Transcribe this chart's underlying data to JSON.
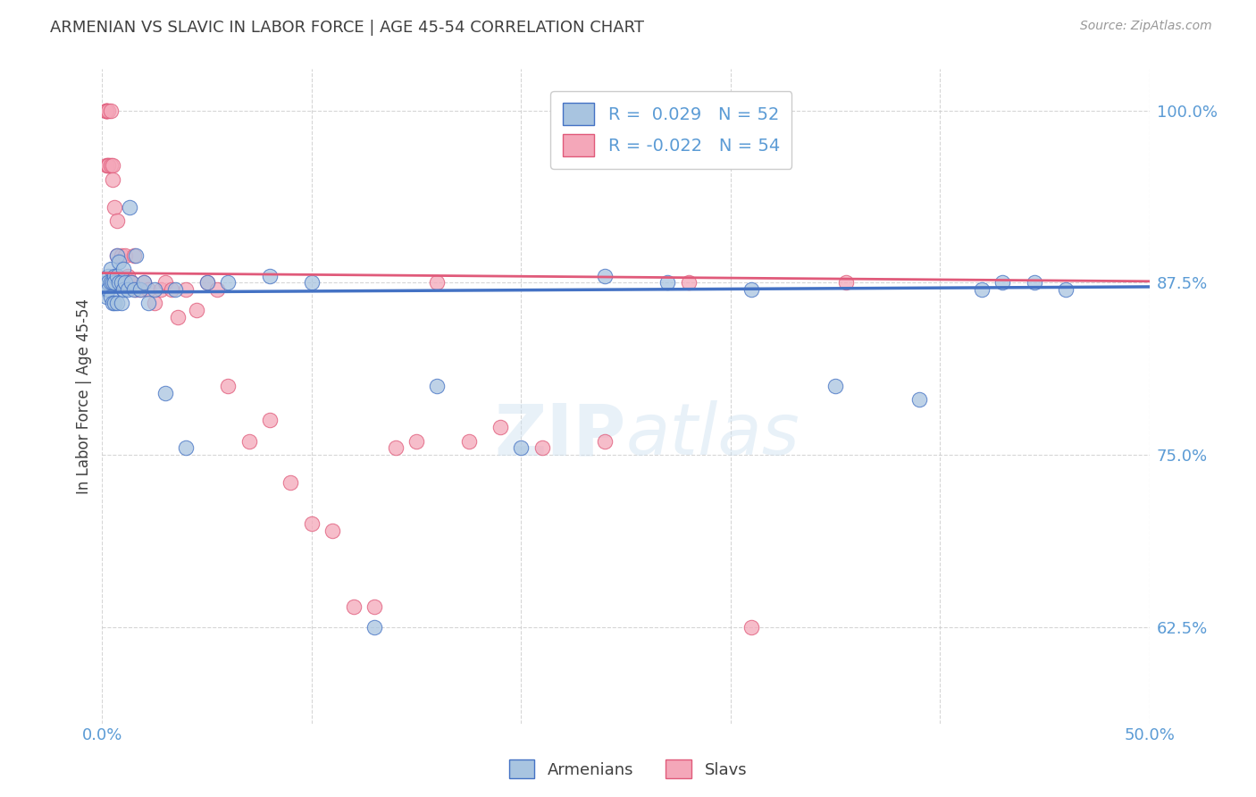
{
  "title": "ARMENIAN VS SLAVIC IN LABOR FORCE | AGE 45-54 CORRELATION CHART",
  "source": "Source: ZipAtlas.com",
  "ylabel": "In Labor Force | Age 45-54",
  "xlim": [
    0.0,
    0.5
  ],
  "ylim": [
    0.555,
    1.03
  ],
  "yticks": [
    0.625,
    0.75,
    0.875,
    1.0
  ],
  "ytick_labels": [
    "62.5%",
    "75.0%",
    "87.5%",
    "100.0%"
  ],
  "xticks": [
    0.0,
    0.1,
    0.2,
    0.3,
    0.4,
    0.5
  ],
  "xtick_labels": [
    "0.0%",
    "",
    "",
    "",
    "",
    "50.0%"
  ],
  "armenian_R": 0.029,
  "armenian_N": 52,
  "slavic_R": -0.022,
  "slavic_N": 54,
  "armenian_color": "#a8c4e0",
  "slavic_color": "#f4a7b9",
  "armenian_line_color": "#4472c4",
  "slavic_line_color": "#e05a7a",
  "background_color": "#ffffff",
  "grid_color": "#cccccc",
  "title_color": "#404040",
  "axis_color": "#5b9bd5",
  "armenian_trendline": [
    [
      0.0,
      0.868
    ],
    [
      0.5,
      0.872
    ]
  ],
  "slavic_trendline": [
    [
      0.0,
      0.882
    ],
    [
      0.5,
      0.876
    ]
  ],
  "armenian_x": [
    0.002,
    0.002,
    0.002,
    0.003,
    0.003,
    0.003,
    0.004,
    0.004,
    0.004,
    0.005,
    0.005,
    0.006,
    0.006,
    0.006,
    0.007,
    0.007,
    0.007,
    0.008,
    0.008,
    0.009,
    0.009,
    0.01,
    0.01,
    0.011,
    0.012,
    0.013,
    0.014,
    0.015,
    0.016,
    0.018,
    0.02,
    0.022,
    0.025,
    0.03,
    0.035,
    0.04,
    0.05,
    0.06,
    0.08,
    0.1,
    0.13,
    0.16,
    0.2,
    0.24,
    0.27,
    0.31,
    0.35,
    0.39,
    0.42,
    0.43,
    0.445,
    0.46
  ],
  "armenian_y": [
    0.875,
    0.87,
    0.865,
    0.88,
    0.875,
    0.87,
    0.885,
    0.875,
    0.865,
    0.875,
    0.86,
    0.88,
    0.875,
    0.86,
    0.895,
    0.88,
    0.86,
    0.89,
    0.875,
    0.875,
    0.86,
    0.885,
    0.87,
    0.875,
    0.87,
    0.93,
    0.875,
    0.87,
    0.895,
    0.87,
    0.875,
    0.86,
    0.87,
    0.795,
    0.87,
    0.755,
    0.875,
    0.875,
    0.88,
    0.875,
    0.625,
    0.8,
    0.755,
    0.88,
    0.875,
    0.87,
    0.8,
    0.79,
    0.87,
    0.875,
    0.875,
    0.87
  ],
  "slavic_x": [
    0.002,
    0.002,
    0.002,
    0.002,
    0.002,
    0.003,
    0.003,
    0.003,
    0.004,
    0.004,
    0.005,
    0.005,
    0.006,
    0.007,
    0.007,
    0.008,
    0.009,
    0.01,
    0.011,
    0.012,
    0.013,
    0.014,
    0.015,
    0.016,
    0.018,
    0.02,
    0.022,
    0.025,
    0.028,
    0.03,
    0.033,
    0.036,
    0.04,
    0.045,
    0.05,
    0.055,
    0.06,
    0.07,
    0.08,
    0.09,
    0.1,
    0.11,
    0.12,
    0.13,
    0.14,
    0.15,
    0.16,
    0.175,
    0.19,
    0.21,
    0.24,
    0.28,
    0.31,
    0.355
  ],
  "slavic_y": [
    1.0,
    1.0,
    1.0,
    1.0,
    0.96,
    1.0,
    0.96,
    0.96,
    1.0,
    0.96,
    0.96,
    0.95,
    0.93,
    0.92,
    0.895,
    0.875,
    0.895,
    0.875,
    0.895,
    0.88,
    0.875,
    0.875,
    0.895,
    0.87,
    0.87,
    0.875,
    0.87,
    0.86,
    0.87,
    0.875,
    0.87,
    0.85,
    0.87,
    0.855,
    0.875,
    0.87,
    0.8,
    0.76,
    0.775,
    0.73,
    0.7,
    0.695,
    0.64,
    0.64,
    0.755,
    0.76,
    0.875,
    0.76,
    0.77,
    0.755,
    0.76,
    0.875,
    0.625,
    0.875
  ]
}
